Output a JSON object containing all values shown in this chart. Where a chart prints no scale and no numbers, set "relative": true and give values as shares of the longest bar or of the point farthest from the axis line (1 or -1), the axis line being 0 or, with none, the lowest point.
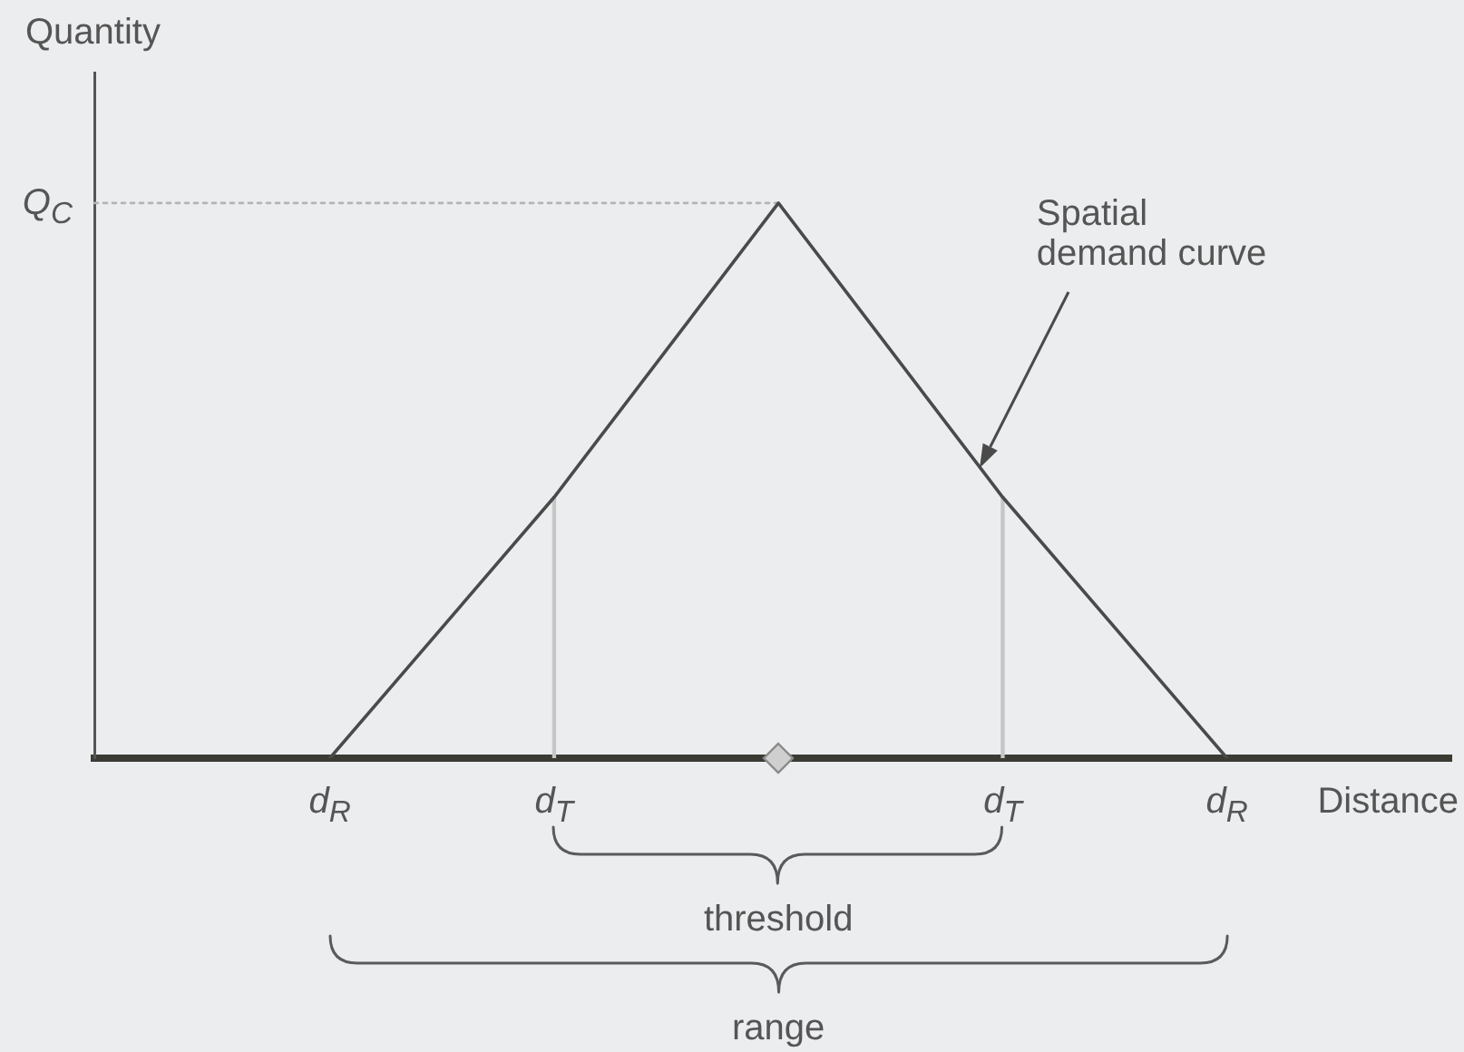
{
  "chart_data": {
    "type": "line",
    "xlabel": "Distance",
    "ylabel": "Quantity",
    "categories": [
      "d$_{R}$",
      "d$_{T}$",
      null,
      "d$_{T}$",
      "d$_{R}$"
    ],
    "relative": true,
    "series": [
      {
        "name": "Spatial demand curve",
        "color": "#4a4a4a",
        "values": [
          0,
          0.47,
          1,
          0.47,
          0
        ]
      },
      {
        "type": "bar",
        "color": "#c6c6c6",
        "values": [
          null,
          0.47,
          null,
          0.47,
          null
        ]
      }
    ],
    "ref_lines": [
      {
        "axis": "y",
        "value": 1,
        "label": "Q$_{C}$",
        "color": "#b4b4b4",
        "line_style": "dotted"
      }
    ],
    "annotations": [
      "threshold",
      "range"
    ],
    "grid": false,
    "legend": false,
    "tick_labels": "x"
  }
}
